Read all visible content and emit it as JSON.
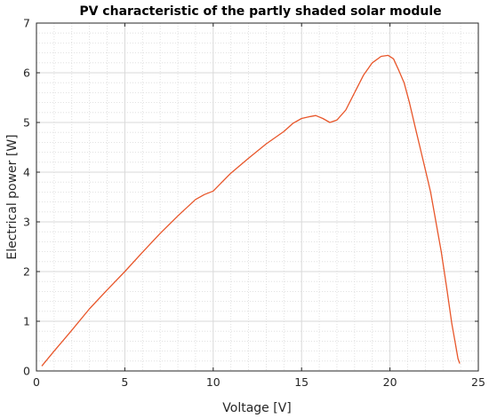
{
  "chart_data": {
    "type": "line",
    "title": "PV characteristic of the partly shaded solar module",
    "xlabel": "Voltage [V]",
    "ylabel": "Electrical power [W]",
    "xlim": [
      0,
      25
    ],
    "ylim": [
      0,
      7
    ],
    "xticks": [
      "0",
      "5",
      "10",
      "15",
      "20",
      "25"
    ],
    "yticks": [
      "0",
      "1",
      "2",
      "3",
      "4",
      "5",
      "6",
      "7"
    ],
    "grid": true,
    "minor_grid": true,
    "colors": {
      "series": "#e8562a"
    },
    "series": [
      {
        "x": [
          0.3,
          1,
          2,
          3,
          4,
          5,
          6,
          7,
          8,
          9,
          9.5,
          10,
          10.5,
          11,
          12,
          13,
          14,
          14.5,
          15,
          15.5,
          15.8,
          16.2,
          16.6,
          17,
          17.5,
          18,
          18.5,
          19,
          19.5,
          19.9,
          20.2,
          20.5,
          20.8,
          21.1,
          21.4,
          21.7,
          22,
          22.3,
          22.6,
          22.9,
          23.2,
          23.5,
          23.7,
          23.85,
          23.95
        ],
        "y": [
          0.1,
          0.4,
          0.82,
          1.25,
          1.63,
          2.0,
          2.39,
          2.77,
          3.12,
          3.45,
          3.55,
          3.62,
          3.8,
          3.98,
          4.28,
          4.57,
          4.82,
          4.98,
          5.08,
          5.12,
          5.14,
          5.08,
          5.0,
          5.05,
          5.25,
          5.6,
          5.95,
          6.2,
          6.33,
          6.35,
          6.28,
          6.05,
          5.8,
          5.4,
          4.95,
          4.5,
          4.05,
          3.6,
          3.0,
          2.4,
          1.7,
          0.95,
          0.55,
          0.25,
          0.15
        ]
      }
    ]
  }
}
